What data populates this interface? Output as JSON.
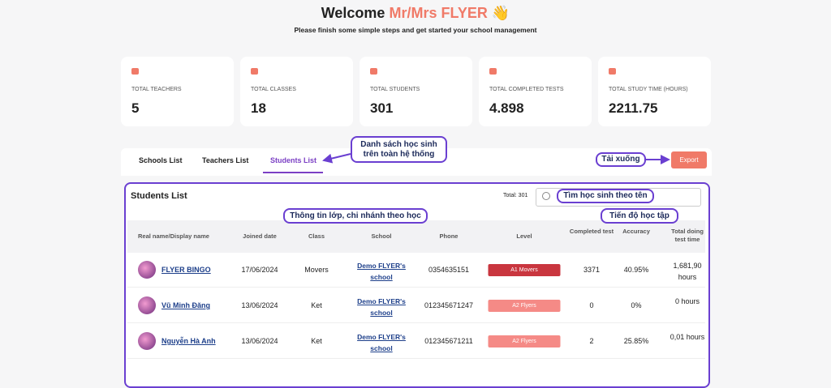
{
  "header": {
    "title": "Welcome",
    "highlight": "Mr/Mrs FLYER 👋",
    "subtitle": "Please finish some simple steps and get started your school management"
  },
  "stats": [
    {
      "label": "TOTAL TEACHERS",
      "value": "5"
    },
    {
      "label": "TOTAL CLASSES",
      "value": "18"
    },
    {
      "label": "TOTAL STUDENTS",
      "value": "301"
    },
    {
      "label": "TOTAL COMPLETED TESTS",
      "value": "4.898"
    },
    {
      "label": "TOTAL STUDY TIME (HOURS)",
      "value": "2211.75"
    }
  ],
  "tabs": [
    "Schools List",
    "Teachers List",
    "Students List"
  ],
  "export": "Export",
  "annotations": {
    "list": [
      "Danh sách học sinh",
      "trên toàn hệ thống"
    ],
    "download": "Tải xuống",
    "search": "Tìm học sinh theo tên",
    "class_info": "Thông tin lớp, chi nhánh theo học",
    "progress": "Tiến độ học tập"
  },
  "panel": {
    "title": "Students List",
    "total": "Total: 301"
  },
  "table": {
    "columns": [
      "Real name/Display name",
      "Joined date",
      "Class",
      "School",
      "Phone",
      "Level",
      "Completed test",
      "Accuracy",
      "Total doing test time"
    ],
    "rows": [
      [
        "FLYER BINGO",
        "17/06/2024",
        "Movers",
        "Demo FLYER's school",
        "0354635151",
        "A1 Movers",
        "3371",
        "40.95%",
        "1,681,90 hours"
      ],
      [
        "Vũ Minh Đăng",
        "13/06/2024",
        "Ket",
        "Demo FLYER's school",
        "012345671247",
        "A2 Flyers",
        "0",
        "0%",
        "0 hours"
      ],
      [
        "Nguyễn Hà Anh",
        "13/06/2024",
        "Ket",
        "Demo FLYER's school",
        "012345671211",
        "A2 Flyers",
        "2",
        "25.85%",
        "0,01 hours"
      ]
    ]
  }
}
